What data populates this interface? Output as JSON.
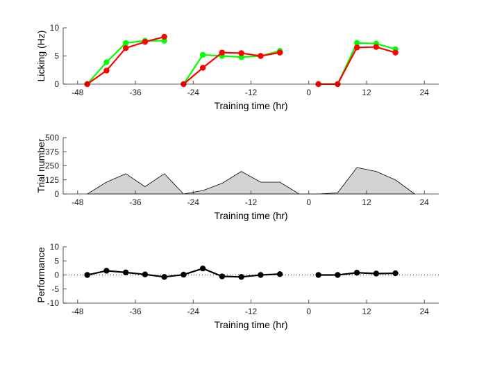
{
  "chart_data": [
    {
      "type": "line",
      "xlabel": "Training time (hr)",
      "ylabel": "Licking (Hz)",
      "xlim": [
        -51,
        27
      ],
      "ylim": [
        0,
        10
      ],
      "xticks": [
        -48,
        -36,
        -24,
        -12,
        0,
        12,
        24
      ],
      "xtick_labels": [
        "-48",
        "-36",
        "-24",
        "-12",
        "0",
        "12",
        "24"
      ],
      "yticks": [
        0,
        5,
        10
      ],
      "ytick_labels": [
        "0",
        "5",
        "10"
      ],
      "grid": false,
      "series": [
        {
          "color": "#00ff00",
          "segments": [
            {
              "x": [
                -46,
                -42,
                -38,
                -34,
                -30
              ],
              "y": [
                0,
                3.9,
                7.3,
                7.7,
                7.7
              ]
            },
            {
              "x": [
                -26,
                -22,
                -18,
                -14,
                -10,
                -6
              ],
              "y": [
                0,
                5.2,
                5.0,
                4.8,
                5.0,
                5.9
              ]
            },
            {
              "x": [
                2,
                6,
                10,
                14,
                18
              ],
              "y": [
                0,
                0,
                7.3,
                7.2,
                6.2
              ]
            }
          ]
        },
        {
          "color": "#ff0000",
          "segments": [
            {
              "x": [
                -46,
                -42,
                -38,
                -34,
                -30
              ],
              "y": [
                0,
                2.4,
                6.4,
                7.5,
                8.4
              ]
            },
            {
              "x": [
                -26,
                -22,
                -18,
                -14,
                -10,
                -6
              ],
              "y": [
                0,
                2.9,
                5.6,
                5.5,
                5.0,
                5.6
              ]
            },
            {
              "x": [
                2,
                6,
                10,
                14,
                18
              ],
              "y": [
                0,
                0,
                6.5,
                6.6,
                5.6
              ]
            }
          ]
        }
      ]
    },
    {
      "type": "area",
      "xlabel": "Training time (hr)",
      "ylabel": "Trial number",
      "xlim": [
        -51,
        27
      ],
      "ylim": [
        0,
        500
      ],
      "xticks": [
        -48,
        -36,
        -24,
        -12,
        0,
        12,
        24
      ],
      "xtick_labels": [
        "-48",
        "-36",
        "-24",
        "-12",
        "0",
        "12",
        "24"
      ],
      "yticks": [
        0,
        125,
        250,
        375,
        500
      ],
      "ytick_labels": [
        "0",
        "125",
        "250",
        "375",
        "500"
      ],
      "grid": false,
      "series": [
        {
          "color": "#d3d3d3",
          "x": [
            -46,
            -42,
            -38,
            -34,
            -30,
            -26,
            -22,
            -18,
            -14,
            -10,
            -6,
            -2,
            2,
            6,
            10,
            14,
            18,
            22
          ],
          "y": [
            0,
            105,
            180,
            65,
            180,
            0,
            30,
            95,
            200,
            105,
            105,
            0,
            0,
            10,
            235,
            200,
            125,
            0
          ]
        }
      ]
    },
    {
      "type": "line",
      "xlabel": "Training time (hr)",
      "ylabel": "Performance",
      "xlim": [
        -51,
        27
      ],
      "ylim": [
        -10,
        10
      ],
      "xticks": [
        -48,
        -36,
        -24,
        -12,
        0,
        12,
        24
      ],
      "xtick_labels": [
        "-48",
        "-36",
        "-24",
        "-12",
        "0",
        "12",
        "24"
      ],
      "yticks": [
        -10,
        -5,
        0,
        5,
        10
      ],
      "ytick_labels": [
        "-10",
        "-5",
        "0",
        "5",
        "10"
      ],
      "grid": false,
      "reference_line": {
        "y": 0,
        "style": "dotted"
      },
      "series": [
        {
          "color": "#000000",
          "segments": [
            {
              "x": [
                -46,
                -42,
                -38,
                -34,
                -30,
                -26,
                -22,
                -18,
                -14,
                -10,
                -6
              ],
              "y": [
                0,
                1.5,
                0.9,
                0.2,
                -0.7,
                0.1,
                2.3,
                -0.5,
                -0.7,
                0,
                0.3
              ]
            },
            {
              "x": [
                2,
                6,
                10,
                14,
                18
              ],
              "y": [
                0,
                0,
                0.8,
                0.5,
                0.6
              ]
            }
          ]
        }
      ]
    }
  ]
}
